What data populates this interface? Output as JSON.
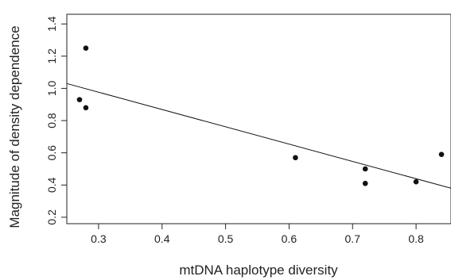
{
  "chart_data": {
    "type": "scatter",
    "xlabel": "mtDNA haplotype diversity",
    "ylabel": "Magnitude of density dependence",
    "xlim": [
      0.25,
      0.855
    ],
    "ylim": [
      0.16,
      1.46
    ],
    "xticks": [
      0.3,
      0.4,
      0.5,
      0.6,
      0.7,
      0.8
    ],
    "yticks": [
      0.2,
      0.4,
      0.6,
      0.8,
      1.0,
      1.2,
      1.4
    ],
    "xtick_labels": [
      "0.3",
      "0.4",
      "0.5",
      "0.6",
      "0.7",
      "0.8"
    ],
    "ytick_labels": [
      "0.2",
      "0.4",
      "0.6",
      "0.8",
      "1.0",
      "1.2",
      "1.4"
    ],
    "points": [
      {
        "x": 0.27,
        "y": 0.93
      },
      {
        "x": 0.28,
        "y": 0.88
      },
      {
        "x": 0.28,
        "y": 1.25
      },
      {
        "x": 0.61,
        "y": 0.57
      },
      {
        "x": 0.72,
        "y": 0.5
      },
      {
        "x": 0.72,
        "y": 0.41
      },
      {
        "x": 0.8,
        "y": 0.42
      },
      {
        "x": 0.84,
        "y": 0.59
      }
    ],
    "fit_line": {
      "x": [
        0.25,
        0.855
      ],
      "y": [
        1.03,
        0.38
      ]
    },
    "grid": false
  }
}
